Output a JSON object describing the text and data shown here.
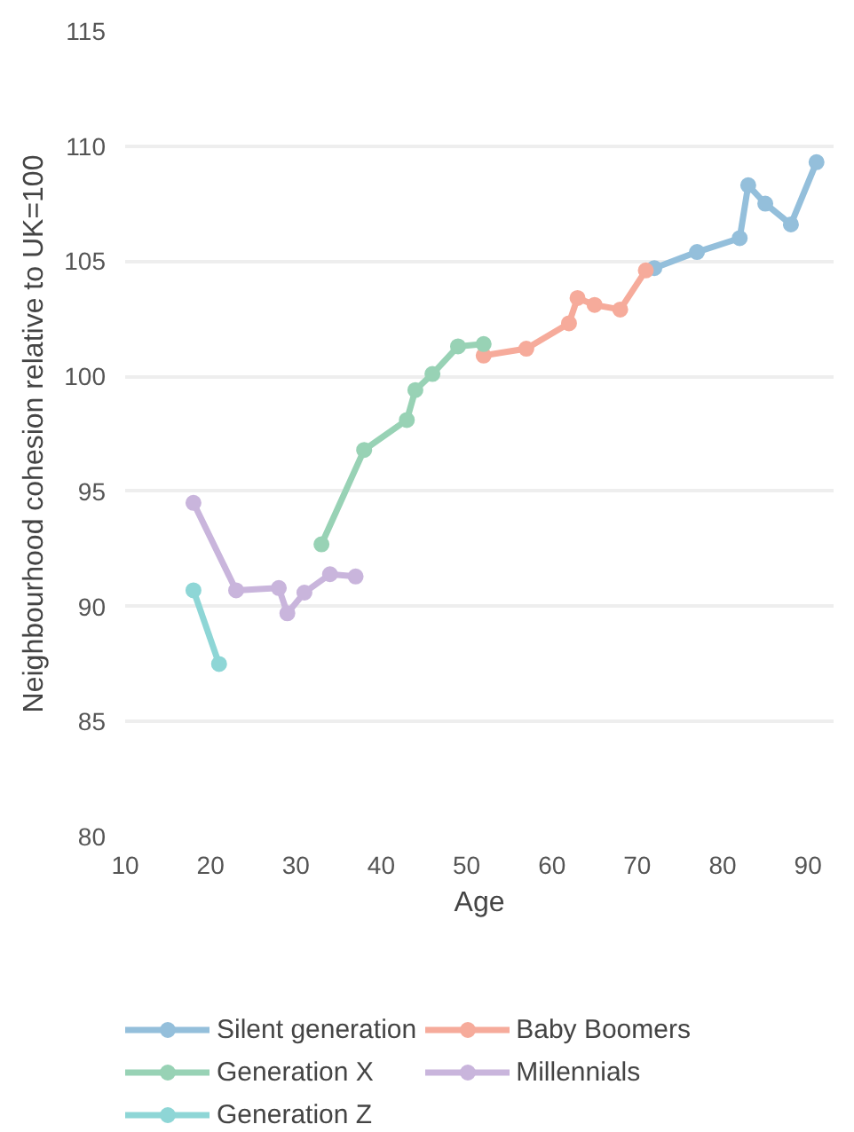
{
  "chart_data": {
    "type": "line",
    "xlabel": "Age",
    "ylabel": "Neighbourhood cohesion relative to UK=100",
    "xlim": [
      10,
      93
    ],
    "ylim": [
      80,
      115
    ],
    "xticks": [
      10,
      20,
      30,
      40,
      50,
      60,
      70,
      80,
      90
    ],
    "yticks": [
      80,
      85,
      90,
      95,
      100,
      105,
      110,
      115
    ],
    "grid": "y",
    "legend": "bottom",
    "marker": "circle",
    "line_style": "solid",
    "series": [
      {
        "name": "Silent generation",
        "color": "#94bfdb",
        "x": [
          72,
          77,
          82,
          83,
          85,
          88,
          91
        ],
        "values": [
          104.7,
          105.4,
          106,
          108.3,
          107.5,
          106.6,
          109.3
        ]
      },
      {
        "name": "Baby Boomers",
        "color": "#f6ab9b",
        "x": [
          52,
          57,
          62,
          63,
          65,
          68,
          71
        ],
        "values": [
          100.9,
          101.2,
          102.3,
          103.4,
          103.1,
          102.9,
          104.6
        ]
      },
      {
        "name": "Generation X",
        "color": "#98d2b5",
        "x": [
          33,
          38,
          43,
          44,
          46,
          49,
          52
        ],
        "values": [
          92.7,
          96.8,
          98.1,
          99.4,
          100.1,
          101.3,
          101.4
        ]
      },
      {
        "name": "Millennials",
        "color": "#c9b5dc",
        "x": [
          18,
          23,
          28,
          29,
          31,
          34,
          37
        ],
        "values": [
          94.5,
          90.7,
          90.8,
          89.7,
          90.6,
          91.4,
          91.3
        ]
      },
      {
        "name": "Generation Z",
        "color": "#8ed6d6",
        "x": [
          18,
          21
        ],
        "values": [
          90.7,
          87.5
        ]
      }
    ]
  }
}
